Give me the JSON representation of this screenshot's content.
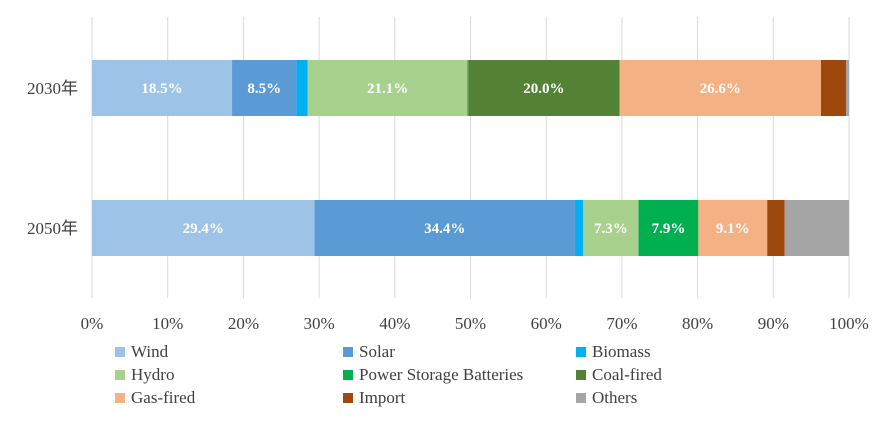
{
  "chart_data": {
    "type": "bar",
    "orientation": "horizontal",
    "stacked": true,
    "categories": [
      "2030年",
      "2050年"
    ],
    "series": [
      {
        "name": "Wind",
        "color": "#9DC3E6",
        "values": [
          18.5,
          29.4
        ],
        "labels": [
          "18.5%",
          "29.4%"
        ]
      },
      {
        "name": "Solar",
        "color": "#5B9BD5",
        "values": [
          8.5,
          34.4
        ],
        "labels": [
          "8.5%",
          "34.4%"
        ]
      },
      {
        "name": "Biomass",
        "color": "#00B0F0",
        "values": [
          1.5,
          1.1
        ],
        "labels": [
          "",
          ""
        ]
      },
      {
        "name": "Hydro",
        "color": "#A9D18E",
        "values": [
          21.1,
          7.3
        ],
        "labels": [
          "21.1%",
          "7.3%"
        ]
      },
      {
        "name": "Power Storage Batteries",
        "color": "#00B050",
        "values": [
          0.1,
          7.9
        ],
        "labels": [
          "",
          "7.9%"
        ]
      },
      {
        "name": "Coal-fired",
        "color": "#548235",
        "values": [
          20.0,
          0.0
        ],
        "labels": [
          "20.0%",
          ""
        ]
      },
      {
        "name": "Gas-fired",
        "color": "#F4B183",
        "values": [
          26.6,
          9.1
        ],
        "labels": [
          "26.6%",
          "9.1%"
        ]
      },
      {
        "name": "Import",
        "color": "#9E480E",
        "values": [
          3.3,
          2.3
        ],
        "labels": [
          "",
          ""
        ]
      },
      {
        "name": "Others",
        "color": "#A5A5A5",
        "values": [
          0.4,
          8.5
        ],
        "labels": [
          "",
          ""
        ]
      }
    ],
    "xlim": [
      0,
      100
    ],
    "x_ticks": [
      "0%",
      "10%",
      "20%",
      "30%",
      "40%",
      "50%",
      "60%",
      "70%",
      "80%",
      "90%",
      "100%"
    ],
    "grid": true,
    "legend_position": "bottom"
  }
}
